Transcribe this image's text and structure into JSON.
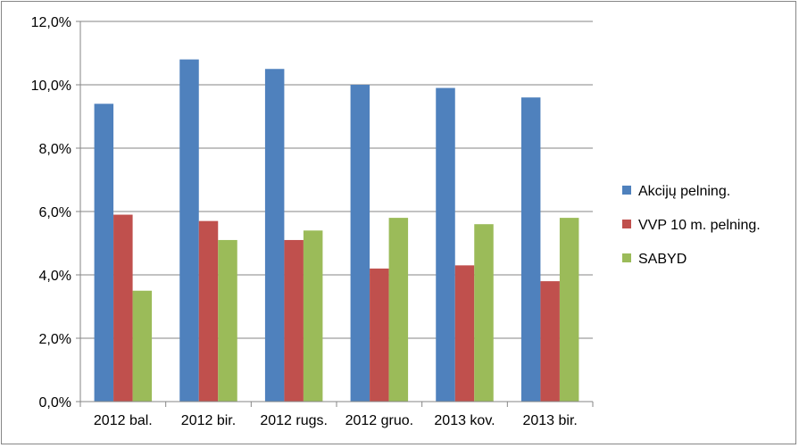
{
  "chart_data": {
    "type": "bar",
    "title": "",
    "xlabel": "",
    "ylabel": "",
    "categories": [
      "2012 bal.",
      "2012 bir.",
      "2012 rugs.",
      "2012 gruo.",
      "2013 kov.",
      "2013 bir."
    ],
    "series": [
      {
        "name": "Akcijų pelning.",
        "color": "#4f81bd",
        "values": [
          9.4,
          10.8,
          10.5,
          10.0,
          9.9,
          9.6
        ]
      },
      {
        "name": "VVP 10 m. pelning.",
        "color": "#c0504d",
        "values": [
          5.9,
          5.7,
          5.1,
          4.2,
          4.3,
          3.8
        ]
      },
      {
        "name": "SABYD",
        "color": "#9bbb59",
        "values": [
          3.5,
          5.1,
          5.4,
          5.8,
          5.6,
          5.8
        ]
      }
    ],
    "ylim": [
      0,
      12
    ],
    "y_ticks": [
      "0,0%",
      "2,0%",
      "4,0%",
      "6,0%",
      "8,0%",
      "10,0%",
      "12,0%"
    ],
    "grid": true,
    "legend_position": "right"
  }
}
